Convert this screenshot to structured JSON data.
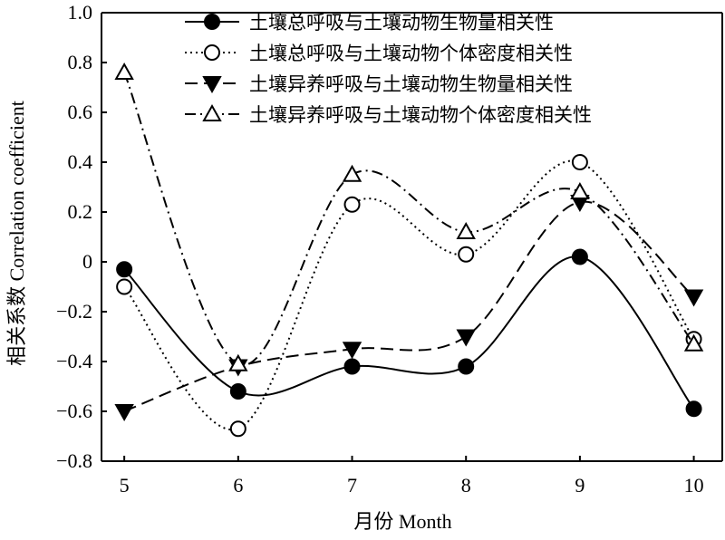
{
  "chart_data": {
    "type": "line",
    "title": "",
    "xlabel": "月份 Month",
    "ylabel": "相关系数 Correlation coefficient",
    "x": [
      5,
      6,
      7,
      8,
      9,
      10
    ],
    "x_tick_labels": [
      "5",
      "6",
      "7",
      "8",
      "9",
      "10"
    ],
    "ylim": [
      -0.8,
      1.0
    ],
    "y_ticks": [
      -0.8,
      -0.6,
      -0.4,
      -0.2,
      0,
      0.2,
      0.4,
      0.6,
      0.8,
      1.0
    ],
    "y_tick_labels": [
      "−0.8",
      "−0.6",
      "−0.4",
      "−0.2",
      "0",
      "0.2",
      "0.4",
      "0.6",
      "0.8",
      "1.0"
    ],
    "grid": false,
    "legend_position": "top-right",
    "series": [
      {
        "name": "土壤总呼吸与土壤动物生物量相关性",
        "values": [
          -0.03,
          -0.52,
          -0.42,
          -0.42,
          0.02,
          -0.59
        ],
        "line_style": "solid",
        "marker": "filled-circle"
      },
      {
        "name": "土壤总呼吸与土壤动物个体密度相关性",
        "values": [
          -0.1,
          -0.67,
          0.23,
          0.03,
          0.4,
          -0.31
        ],
        "line_style": "dotted",
        "marker": "open-circle"
      },
      {
        "name": "土壤异养呼吸与土壤动物生物量相关性",
        "values": [
          -0.6,
          -0.42,
          -0.35,
          -0.3,
          0.24,
          -0.14
        ],
        "line_style": "dashed",
        "marker": "filled-triangle-down"
      },
      {
        "name": "土壤异养呼吸与土壤动物个体密度相关性",
        "values": [
          0.76,
          -0.41,
          0.35,
          0.12,
          0.28,
          -0.33
        ],
        "line_style": "dash-dot",
        "marker": "open-triangle-up"
      }
    ]
  }
}
